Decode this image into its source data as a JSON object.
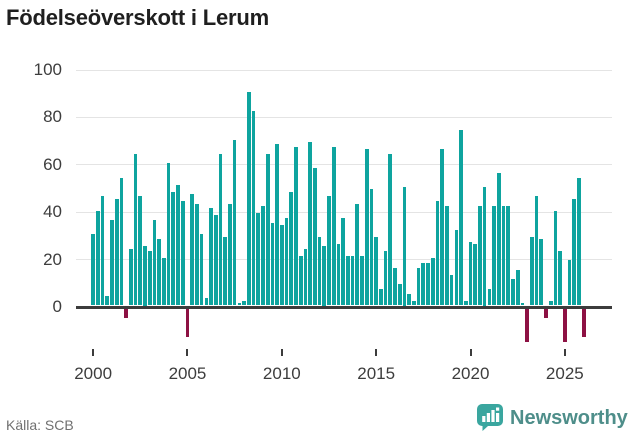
{
  "title": "Födelseöverskott i Lerum",
  "source": "Källa: SCB",
  "brand": {
    "name": "Newsworthy"
  },
  "colors": {
    "positive_bar": "#0ea49f",
    "negative_bar": "#8d1143",
    "zero_line": "#3c3c3c",
    "gridline": "#e4e4e4",
    "axis_text": "#3d3d3d",
    "title_text": "#1f1f1f",
    "source_text": "#707070",
    "brand_teal": "#3aa69f",
    "brand_text": "#4e8e8a"
  },
  "chart_data": {
    "type": "bar",
    "title": "Födelseöverskott i Lerum",
    "xlabel": "",
    "ylabel": "",
    "ylim": [
      -20,
      103
    ],
    "grid": true,
    "start_year": 2000,
    "start_quarter": 1,
    "frequency": "quarterly",
    "y_ticks": [
      100,
      80,
      60,
      40,
      20,
      0
    ],
    "x_tick_labels": [
      "2000",
      "2005",
      "2010",
      "2015",
      "2020",
      "2025"
    ],
    "x_tick_indices": [
      0,
      20,
      40,
      60,
      80,
      100
    ],
    "series": [
      {
        "name": "Födelseöverskott",
        "values": [
          30,
          40,
          46,
          4,
          36,
          45,
          54,
          -4,
          24,
          64,
          46,
          25,
          23,
          36,
          28,
          20,
          60,
          48,
          51,
          44,
          -12,
          47,
          43,
          30,
          3,
          41,
          38,
          64,
          29,
          43,
          70,
          1,
          2,
          90,
          82,
          39,
          42,
          64,
          35,
          68,
          34,
          37,
          48,
          67,
          21,
          24,
          69,
          58,
          29,
          25,
          46,
          67,
          26,
          37,
          21,
          21,
          43,
          21,
          66,
          49,
          29,
          7,
          23,
          64,
          16,
          9,
          50,
          5,
          2,
          16,
          18,
          18,
          20,
          44,
          66,
          42,
          13,
          32,
          74,
          2,
          27,
          26,
          42,
          50,
          7,
          42,
          56,
          42,
          42,
          11,
          15,
          1,
          -14,
          29,
          46,
          28,
          -4,
          2,
          40,
          23,
          -14,
          19,
          45,
          54,
          -12
        ]
      }
    ]
  }
}
